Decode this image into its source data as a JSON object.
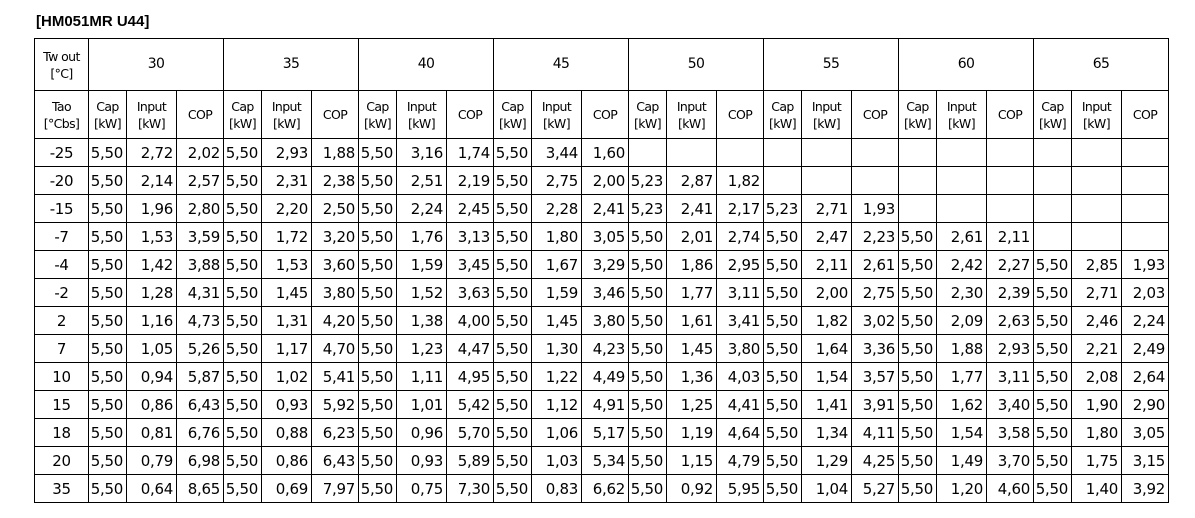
{
  "title": "[HM051MR U44]",
  "table": {
    "header": {
      "corner": "Tw out\n[°C]",
      "temps": [
        "30",
        "35",
        "40",
        "45",
        "50",
        "55",
        "60",
        "65"
      ]
    },
    "subheader": {
      "corner": "Tao\n[°Cbs]",
      "columns": [
        "Cap\n[kW]",
        "Input\n[kW]",
        "COP"
      ]
    },
    "rows": [
      {
        "tao": "-25",
        "cells": [
          "5,50",
          "2,72",
          "2,02",
          "5,50",
          "2,93",
          "1,88",
          "5,50",
          "3,16",
          "1,74",
          "5,50",
          "3,44",
          "1,60"
        ]
      },
      {
        "tao": "-20",
        "cells": [
          "5,50",
          "2,14",
          "2,57",
          "5,50",
          "2,31",
          "2,38",
          "5,50",
          "2,51",
          "2,19",
          "5,50",
          "2,75",
          "2,00",
          "5,23",
          "2,87",
          "1,82"
        ]
      },
      {
        "tao": "-15",
        "cells": [
          "5,50",
          "1,96",
          "2,80",
          "5,50",
          "2,20",
          "2,50",
          "5,50",
          "2,24",
          "2,45",
          "5,50",
          "2,28",
          "2,41",
          "5,23",
          "2,41",
          "2,17",
          "5,23",
          "2,71",
          "1,93"
        ]
      },
      {
        "tao": "-7",
        "cells": [
          "5,50",
          "1,53",
          "3,59",
          "5,50",
          "1,72",
          "3,20",
          "5,50",
          "1,76",
          "3,13",
          "5,50",
          "1,80",
          "3,05",
          "5,50",
          "2,01",
          "2,74",
          "5,50",
          "2,47",
          "2,23",
          "5,50",
          "2,61",
          "2,11"
        ]
      },
      {
        "tao": "-4",
        "cells": [
          "5,50",
          "1,42",
          "3,88",
          "5,50",
          "1,53",
          "3,60",
          "5,50",
          "1,59",
          "3,45",
          "5,50",
          "1,67",
          "3,29",
          "5,50",
          "1,86",
          "2,95",
          "5,50",
          "2,11",
          "2,61",
          "5,50",
          "2,42",
          "2,27",
          "5,50",
          "2,85",
          "1,93"
        ]
      },
      {
        "tao": "-2",
        "cells": [
          "5,50",
          "1,28",
          "4,31",
          "5,50",
          "1,45",
          "3,80",
          "5,50",
          "1,52",
          "3,63",
          "5,50",
          "1,59",
          "3,46",
          "5,50",
          "1,77",
          "3,11",
          "5,50",
          "2,00",
          "2,75",
          "5,50",
          "2,30",
          "2,39",
          "5,50",
          "2,71",
          "2,03"
        ]
      },
      {
        "tao": "2",
        "cells": [
          "5,50",
          "1,16",
          "4,73",
          "5,50",
          "1,31",
          "4,20",
          "5,50",
          "1,38",
          "4,00",
          "5,50",
          "1,45",
          "3,80",
          "5,50",
          "1,61",
          "3,41",
          "5,50",
          "1,82",
          "3,02",
          "5,50",
          "2,09",
          "2,63",
          "5,50",
          "2,46",
          "2,24"
        ]
      },
      {
        "tao": "7",
        "cells": [
          "5,50",
          "1,05",
          "5,26",
          "5,50",
          "1,17",
          "4,70",
          "5,50",
          "1,23",
          "4,47",
          "5,50",
          "1,30",
          "4,23",
          "5,50",
          "1,45",
          "3,80",
          "5,50",
          "1,64",
          "3,36",
          "5,50",
          "1,88",
          "2,93",
          "5,50",
          "2,21",
          "2,49"
        ]
      },
      {
        "tao": "10",
        "cells": [
          "5,50",
          "0,94",
          "5,87",
          "5,50",
          "1,02",
          "5,41",
          "5,50",
          "1,11",
          "4,95",
          "5,50",
          "1,22",
          "4,49",
          "5,50",
          "1,36",
          "4,03",
          "5,50",
          "1,54",
          "3,57",
          "5,50",
          "1,77",
          "3,11",
          "5,50",
          "2,08",
          "2,64"
        ]
      },
      {
        "tao": "15",
        "cells": [
          "5,50",
          "0,86",
          "6,43",
          "5,50",
          "0,93",
          "5,92",
          "5,50",
          "1,01",
          "5,42",
          "5,50",
          "1,12",
          "4,91",
          "5,50",
          "1,25",
          "4,41",
          "5,50",
          "1,41",
          "3,91",
          "5,50",
          "1,62",
          "3,40",
          "5,50",
          "1,90",
          "2,90"
        ]
      },
      {
        "tao": "18",
        "cells": [
          "5,50",
          "0,81",
          "6,76",
          "5,50",
          "0,88",
          "6,23",
          "5,50",
          "0,96",
          "5,70",
          "5,50",
          "1,06",
          "5,17",
          "5,50",
          "1,19",
          "4,64",
          "5,50",
          "1,34",
          "4,11",
          "5,50",
          "1,54",
          "3,58",
          "5,50",
          "1,80",
          "3,05"
        ]
      },
      {
        "tao": "20",
        "cells": [
          "5,50",
          "0,79",
          "6,98",
          "5,50",
          "0,86",
          "6,43",
          "5,50",
          "0,93",
          "5,89",
          "5,50",
          "1,03",
          "5,34",
          "5,50",
          "1,15",
          "4,79",
          "5,50",
          "1,29",
          "4,25",
          "5,50",
          "1,49",
          "3,70",
          "5,50",
          "1,75",
          "3,15"
        ]
      },
      {
        "tao": "35",
        "cells": [
          "5,50",
          "0,64",
          "8,65",
          "5,50",
          "0,69",
          "7,97",
          "5,50",
          "0,75",
          "7,30",
          "5,50",
          "0,83",
          "6,62",
          "5,50",
          "0,92",
          "5,95",
          "5,50",
          "1,04",
          "5,27",
          "5,50",
          "1,20",
          "4,60",
          "5,50",
          "1,40",
          "3,92"
        ]
      }
    ]
  }
}
